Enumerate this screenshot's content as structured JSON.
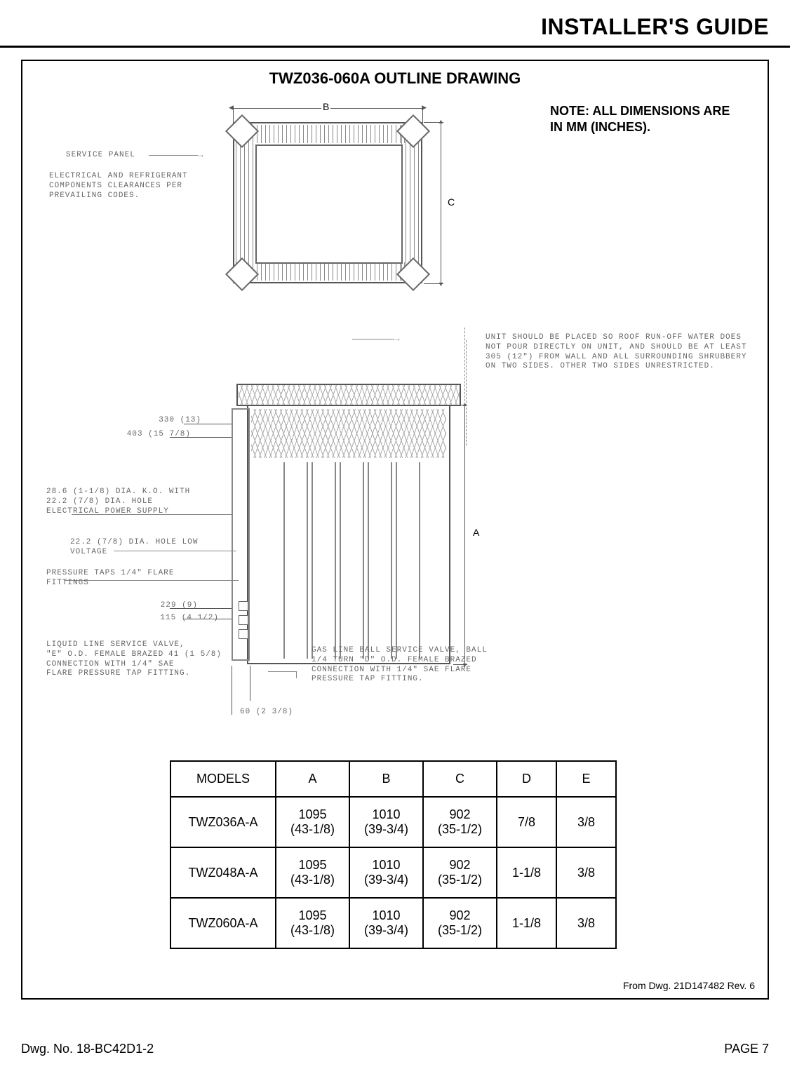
{
  "header": {
    "title": "INSTALLER'S GUIDE"
  },
  "section": {
    "title": "TWZ036-060A OUTLINE DRAWING",
    "note": "NOTE: ALL DIMENSIONS ARE IN MM (INCHES).",
    "from_dwg": "From Dwg. 21D147482 Rev. 6"
  },
  "topview": {
    "dim_b_label": "B",
    "dim_c_label": "C",
    "service_panel": "SERVICE PANEL",
    "clearance_note": "ELECTRICAL AND REFRIGERANT COMPONENTS CLEARANCES PER PREVAILING CODES."
  },
  "frontview": {
    "dim_a_label": "A",
    "placement_note": "UNIT SHOULD BE PLACED SO ROOF RUN-OFF WATER DOES NOT POUR DIRECTLY ON UNIT, AND SHOULD BE AT LEAST 305 (12\") FROM WALL AND ALL SURROUNDING SHRUBBERY ON TWO SIDES. OTHER TWO SIDES UNRESTRICTED.",
    "d330": "330 (13)",
    "d403": "403 (15 7/8)",
    "knockout": "28.6 (1-1/8) DIA. K.O. WITH 22.2 (7/8) DIA. HOLE ELECTRICAL POWER SUPPLY",
    "low_voltage": "22.2 (7/8) DIA. HOLE LOW VOLTAGE",
    "pressure_taps": "PRESSURE TAPS 1/4\" FLARE FITTINGS",
    "d229": "229 (9)",
    "d115": "115 (4 1/2)",
    "liquid_valve": "LIQUID LINE SERVICE VALVE, \"E\" O.D. FEMALE BRAZED CONNECTION WITH 1/4\" SAE FLARE PRESSURE TAP FITTING.",
    "d41": "41 (1 5/8)",
    "d60": "60 (2 3/8)",
    "gas_valve": "GAS LINE BALL SERVICE VALVE, BALL 1/4 TURN \"D\" O.D. FEMALE BRAZED CONNECTION WITH 1/4\" SAE FLARE PRESSURE TAP FITTING."
  },
  "table": {
    "columns": [
      "MODELS",
      "A",
      "B",
      "C",
      "D",
      "E"
    ],
    "rows": [
      [
        "TWZ036A-A",
        "1095 (43-1/8)",
        "1010 (39-3/4)",
        "902 (35-1/2)",
        "7/8",
        "3/8"
      ],
      [
        "TWZ048A-A",
        "1095 (43-1/8)",
        "1010 (39-3/4)",
        "902 (35-1/2)",
        "1-1/8",
        "3/8"
      ],
      [
        "TWZ060A-A",
        "1095 (43-1/8)",
        "1010 (39-3/4)",
        "902 (35-1/2)",
        "1-1/8",
        "3/8"
      ]
    ]
  },
  "footer": {
    "dwg_no": "Dwg. No. 18-BC42D1-2",
    "page": "PAGE 7"
  },
  "colors": {
    "text": "#000000",
    "annot": "#666666",
    "line": "#555555",
    "bg": "#ffffff"
  }
}
